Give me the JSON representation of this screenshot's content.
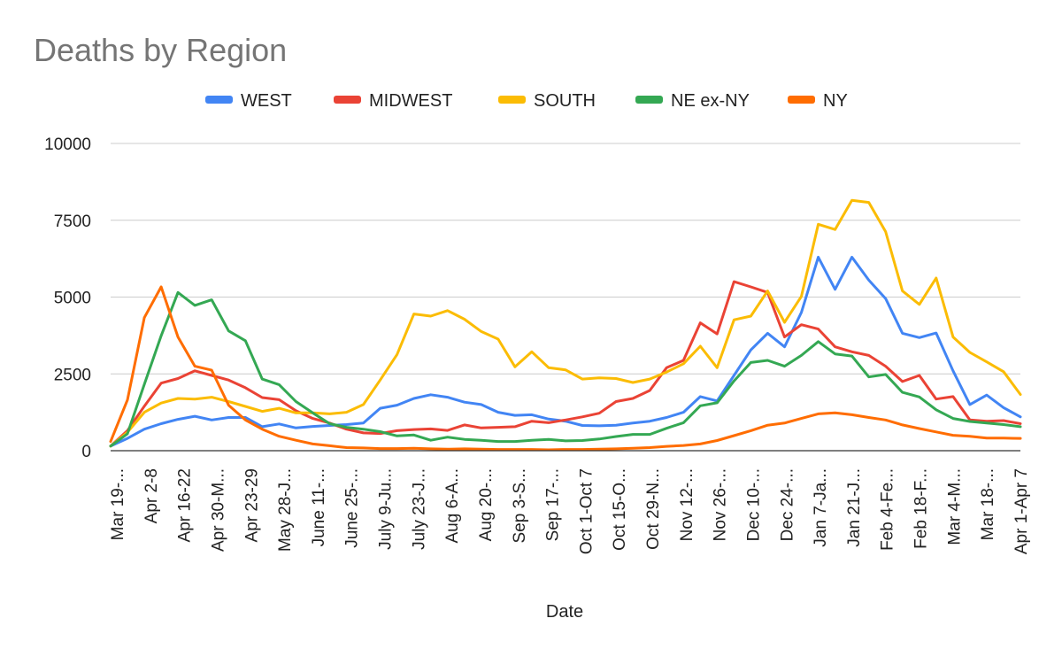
{
  "chart_data": {
    "type": "line",
    "title": "Deaths by Region",
    "xlabel": "Date",
    "ylabel": "",
    "ylim": [
      0,
      10000
    ],
    "yticks": [
      0,
      2500,
      5000,
      7500,
      10000
    ],
    "grid": true,
    "legend_position": "top-center",
    "x_tick_labels": [
      "Mar 19-...",
      "Apr 2-8",
      "Apr 16-22",
      "Apr 30-M...",
      "Apr 23-29",
      "May 28-J...",
      "June 11-...",
      "June 25-...",
      "July 9-Ju...",
      "July 23-J...",
      "Aug 6-A...",
      "Aug 20-...",
      "Sep 3-S...",
      "Sep 17-...",
      "Oct 1-Oct 7",
      "Oct 15-O...",
      "Oct 29-N...",
      "Nov 12-...",
      "Nov 26-...",
      "Dec 10-...",
      "Dec 24-...",
      "Jan 7-Ja...",
      "Jan 21-J...",
      "Feb 4-Fe...",
      "Feb 18-F...",
      "Mar 4-M...",
      "Mar 18-...",
      "Apr 1-Apr 7"
    ],
    "series": [
      {
        "name": "WEST",
        "color": "#4285F4",
        "values": [
          150,
          400,
          700,
          880,
          1020,
          1120,
          1000,
          1080,
          1080,
          780,
          870,
          740,
          790,
          820,
          850,
          900,
          1380,
          1480,
          1700,
          1820,
          1740,
          1580,
          1500,
          1250,
          1150,
          1170,
          1030,
          960,
          820,
          810,
          830,
          900,
          960,
          1080,
          1250,
          1760,
          1620,
          2450,
          3280,
          3820,
          3380,
          4500,
          6300,
          5250,
          6300,
          5550,
          4950,
          3820,
          3680,
          3830,
          2600,
          1500,
          1810,
          1400,
          1100
        ]
      },
      {
        "name": "MIDWEST",
        "color": "#EA4335",
        "values": [
          150,
          650,
          1450,
          2200,
          2350,
          2600,
          2450,
          2300,
          2050,
          1730,
          1660,
          1300,
          1050,
          900,
          700,
          580,
          560,
          650,
          690,
          710,
          660,
          840,
          740,
          760,
          780,
          960,
          910,
          1000,
          1100,
          1220,
          1600,
          1700,
          1960,
          2700,
          2940,
          4160,
          3800,
          5500,
          5330,
          5150,
          3700,
          4100,
          3960,
          3380,
          3220,
          3100,
          2750,
          2250,
          2450,
          1680,
          1760,
          1000,
          960,
          980,
          880
        ]
      },
      {
        "name": "SOUTH",
        "color": "#FBBC04",
        "values": [
          150,
          600,
          1250,
          1550,
          1700,
          1680,
          1740,
          1600,
          1440,
          1280,
          1380,
          1230,
          1230,
          1200,
          1250,
          1500,
          2300,
          3130,
          4450,
          4380,
          4560,
          4280,
          3880,
          3630,
          2730,
          3220,
          2700,
          2630,
          2330,
          2370,
          2350,
          2220,
          2330,
          2560,
          2830,
          3400,
          2700,
          4260,
          4380,
          5200,
          4180,
          5020,
          7370,
          7200,
          8150,
          8080,
          7130,
          5200,
          4760,
          5620,
          3700,
          3200,
          2890,
          2570,
          1830
        ]
      },
      {
        "name": "NE ex-NY",
        "color": "#34A853",
        "values": [
          150,
          550,
          2160,
          3740,
          5150,
          4730,
          4910,
          3900,
          3580,
          2330,
          2150,
          1600,
          1230,
          880,
          760,
          700,
          620,
          480,
          510,
          340,
          440,
          370,
          340,
          300,
          300,
          340,
          370,
          320,
          330,
          380,
          460,
          530,
          530,
          730,
          910,
          1460,
          1560,
          2270,
          2870,
          2940,
          2750,
          3100,
          3550,
          3150,
          3080,
          2400,
          2480,
          1900,
          1750,
          1330,
          1050,
          950,
          900,
          850,
          780
        ]
      },
      {
        "name": "NY",
        "color": "#FF6D01",
        "values": [
          300,
          1650,
          4330,
          5330,
          3700,
          2750,
          2620,
          1480,
          1000,
          700,
          470,
          340,
          220,
          160,
          100,
          90,
          70,
          70,
          80,
          60,
          50,
          60,
          50,
          40,
          40,
          40,
          30,
          40,
          40,
          50,
          60,
          80,
          100,
          140,
          170,
          220,
          330,
          490,
          650,
          830,
          900,
          1050,
          1200,
          1230,
          1170,
          1080,
          1000,
          840,
          720,
          610,
          500,
          470,
          410,
          410,
          400
        ]
      }
    ]
  }
}
